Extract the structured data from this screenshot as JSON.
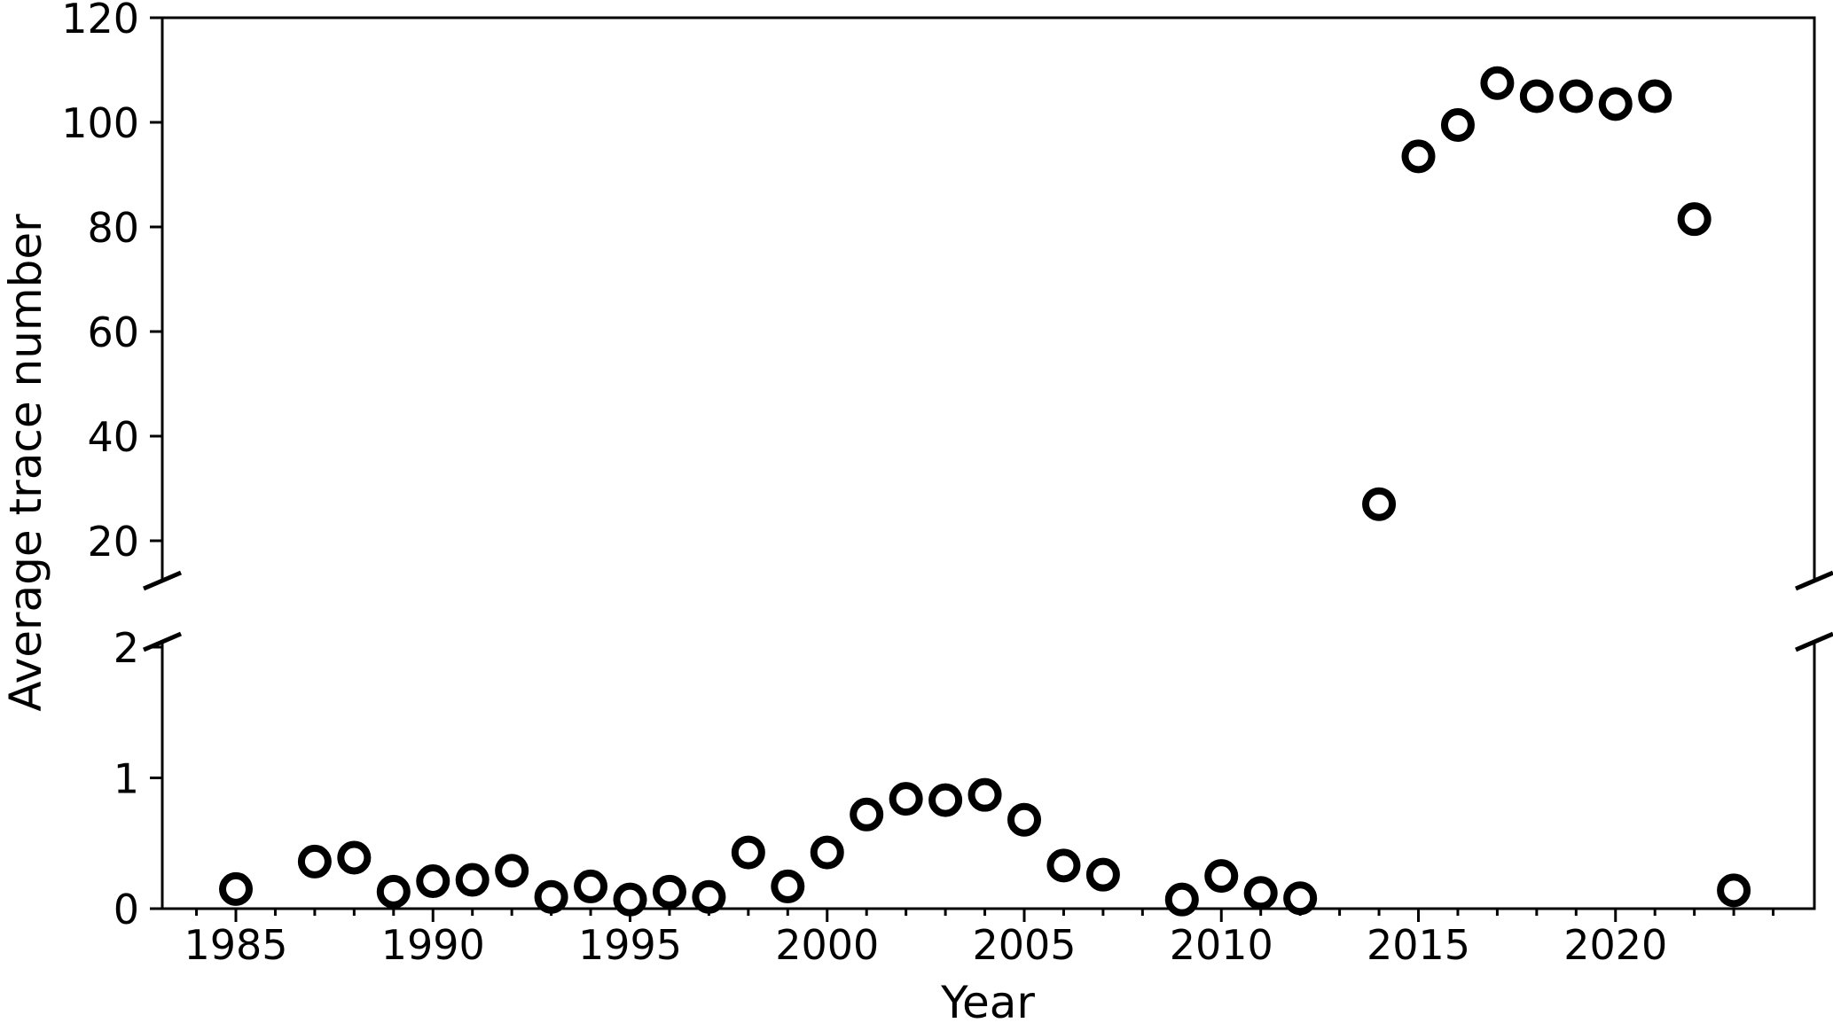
{
  "chart_data": {
    "type": "scatter",
    "title": "",
    "xlabel": "Year",
    "ylabel": "Average trace number",
    "background_color": "#ffffff",
    "axis_color": "#000000",
    "grid": false,
    "legend": null,
    "marker": {
      "shape": "open-circle",
      "edge_color": "#000000",
      "fill_color": "#ffffff"
    },
    "broken_y_axis": {
      "upper_ylim": [
        12.4,
        120
      ],
      "upper_yticks": [
        20,
        40,
        60,
        80,
        100,
        120
      ],
      "lower_ylim": [
        0,
        2.05
      ],
      "lower_yticks": [
        0,
        1,
        2
      ],
      "break_between_values": [
        2,
        13
      ]
    },
    "xlim": [
      1983.1,
      2025.1
    ],
    "xticks_labeled": [
      1985,
      1990,
      1995,
      2000,
      2005,
      2010,
      2015,
      2020
    ],
    "xticks_minor_year_start": 1984,
    "xticks_minor_year_end": 2024,
    "points": [
      {
        "year": 1985,
        "value": 0.15
      },
      {
        "year": 1987,
        "value": 0.36
      },
      {
        "year": 1988,
        "value": 0.39
      },
      {
        "year": 1989,
        "value": 0.13
      },
      {
        "year": 1990,
        "value": 0.21
      },
      {
        "year": 1991,
        "value": 0.22
      },
      {
        "year": 1992,
        "value": 0.29
      },
      {
        "year": 1993,
        "value": 0.09
      },
      {
        "year": 1994,
        "value": 0.17
      },
      {
        "year": 1995,
        "value": 0.07
      },
      {
        "year": 1996,
        "value": 0.13
      },
      {
        "year": 1997,
        "value": 0.09
      },
      {
        "year": 1998,
        "value": 0.43
      },
      {
        "year": 1999,
        "value": 0.17
      },
      {
        "year": 2000,
        "value": 0.43
      },
      {
        "year": 2001,
        "value": 0.72
      },
      {
        "year": 2002,
        "value": 0.84
      },
      {
        "year": 2003,
        "value": 0.83
      },
      {
        "year": 2004,
        "value": 0.87
      },
      {
        "year": 2005,
        "value": 0.68
      },
      {
        "year": 2006,
        "value": 0.33
      },
      {
        "year": 2007,
        "value": 0.26
      },
      {
        "year": 2009,
        "value": 0.07
      },
      {
        "year": 2010,
        "value": 0.25
      },
      {
        "year": 2011,
        "value": 0.12
      },
      {
        "year": 2012,
        "value": 0.08
      },
      {
        "year": 2014,
        "value": 27
      },
      {
        "year": 2015,
        "value": 93.5
      },
      {
        "year": 2016,
        "value": 99.5
      },
      {
        "year": 2017,
        "value": 107.5
      },
      {
        "year": 2018,
        "value": 105
      },
      {
        "year": 2019,
        "value": 105
      },
      {
        "year": 2020,
        "value": 103.5
      },
      {
        "year": 2021,
        "value": 105
      },
      {
        "year": 2022,
        "value": 81.5
      },
      {
        "year": 2023,
        "value": 0.14
      }
    ]
  }
}
